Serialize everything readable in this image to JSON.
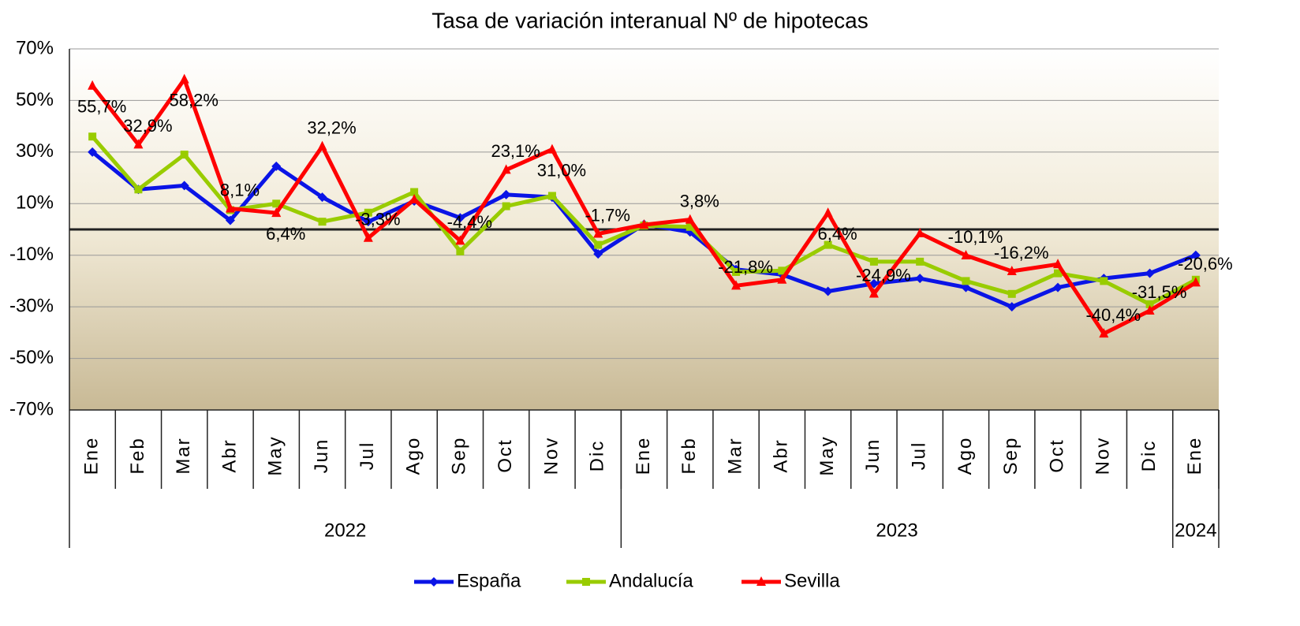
{
  "chart_data": {
    "type": "line",
    "title": "Tasa de variación interanual Nº de hipotecas",
    "categories": [
      "Ene",
      "Feb",
      "Mar",
      "Abr",
      "May",
      "Jun",
      "Jul",
      "Ago",
      "Sep",
      "Oct",
      "Nov",
      "Dic",
      "Ene",
      "Feb",
      "Mar",
      "Abr",
      "May",
      "Jun",
      "Jul",
      "Ago",
      "Sep",
      "Oct",
      "Nov",
      "Dic",
      "Ene"
    ],
    "groups": [
      {
        "label": "2022",
        "span": 12
      },
      {
        "label": "2023",
        "span": 12
      },
      {
        "label": "2024",
        "span": 1
      }
    ],
    "ylim": [
      -70,
      70
    ],
    "yticks": [
      {
        "value": 70,
        "label": "70%"
      },
      {
        "value": 50,
        "label": "50%"
      },
      {
        "value": 30,
        "label": "30%"
      },
      {
        "value": 10,
        "label": "10%"
      },
      {
        "value": -10,
        "label": "-10%"
      },
      {
        "value": -30,
        "label": "-30%"
      },
      {
        "value": -50,
        "label": "-50%"
      },
      {
        "value": -70,
        "label": "-70%"
      }
    ],
    "grid": true,
    "series": [
      {
        "name": "España",
        "color": "#0a14e6",
        "marker": "diamond",
        "values": [
          30,
          15.5,
          17,
          3.5,
          24.5,
          12.5,
          3,
          11,
          4.5,
          13.5,
          12.5,
          -9.5,
          2,
          -1,
          -15.5,
          -17.5,
          -24,
          -21,
          -19,
          -22.5,
          -30,
          -22.5,
          -19,
          -17,
          -10
        ]
      },
      {
        "name": "Andalucía",
        "color": "#99cc00",
        "marker": "square",
        "values": [
          36,
          15.5,
          29,
          7.5,
          10,
          3,
          6.5,
          14.5,
          -8.5,
          9,
          13,
          -6,
          1.5,
          1,
          -16.5,
          -16,
          -6,
          -12.5,
          -12.5,
          -20,
          -25,
          -17,
          -20,
          -29,
          -19.5
        ]
      },
      {
        "name": "Sevilla",
        "color": "#ff0000",
        "marker": "triangle",
        "values": [
          55.7,
          32.9,
          58.2,
          8.1,
          6.4,
          32.2,
          -3.3,
          11.6,
          -4.4,
          23.1,
          31.0,
          -1.7,
          1.8,
          3.8,
          -21.8,
          -19.5,
          6.4,
          -24.9,
          -1.5,
          -10.1,
          -16.2,
          -13.5,
          -40.4,
          -31.5,
          -20.6
        ],
        "value_labels": [
          "55,7%",
          "32,9%",
          "58,2%",
          "8,1%",
          "6,4%",
          "32,2%",
          "-3,3%",
          null,
          "-4,4%",
          "23,1%",
          "31,0%",
          "-1,7%",
          null,
          "3,8%",
          "-21,8%",
          null,
          "6,4%",
          "-24,9%",
          null,
          "-10,1%",
          "-16,2%",
          null,
          "-40,4%",
          "-31,5%",
          "-20,6%"
        ]
      }
    ]
  }
}
